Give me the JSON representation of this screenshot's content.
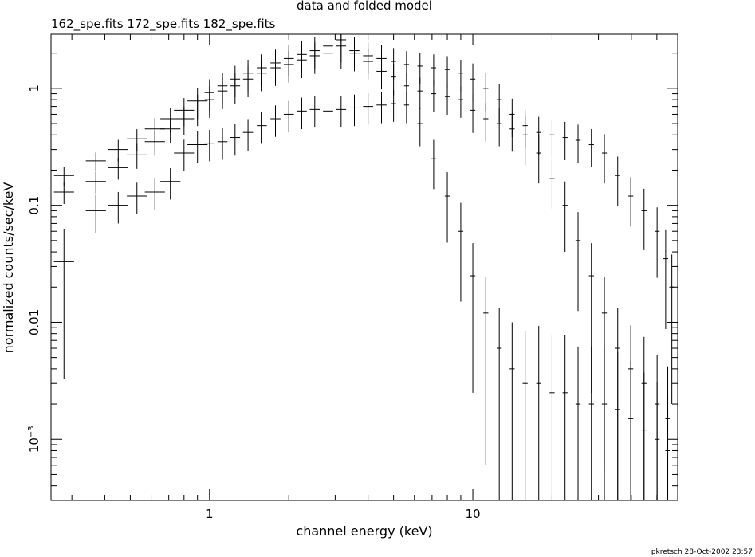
{
  "chart_data": {
    "type": "scatter",
    "title": "data and folded model",
    "subtitle": "162_spe.fits 172_spe.fits 182_spe.fits",
    "xlabel": "channel energy (keV)",
    "ylabel": "normalized counts/sec/keV",
    "xscale": "log",
    "yscale": "log",
    "xlim": [
      0.25,
      60
    ],
    "ylim": [
      0.0003,
      2.9
    ],
    "xticks": [
      {
        "value": 1,
        "label": "1"
      },
      {
        "value": 10,
        "label": "10"
      }
    ],
    "yticks": [
      {
        "value": 1,
        "label": "1"
      },
      {
        "value": 0.1,
        "label": "0.1"
      },
      {
        "value": 0.01,
        "label": "0.01"
      },
      {
        "value": 0.001,
        "label": "10",
        "exponent": "−3"
      }
    ],
    "grid": false,
    "legend": "none",
    "colors": {
      "marks": "#000000",
      "background": "#ffffff"
    },
    "footer": "pkretsch  28-Oct-2002 23:57",
    "series": [
      {
        "x": [
          0.28,
          0.37,
          0.45,
          0.53,
          0.62,
          0.71,
          0.8,
          0.9,
          1.0,
          1.12,
          1.25,
          1.4,
          1.58,
          1.78,
          2.0,
          2.24,
          2.51,
          2.82,
          3.16,
          3.55,
          4.0,
          4.5,
          5.0,
          5.6,
          6.3,
          7.1,
          8.0,
          9.0,
          10.0,
          11.2,
          12.6,
          14.1,
          15.8,
          17.8,
          20.0,
          22.4,
          25.1,
          28.2,
          31.6,
          35.5,
          39.8,
          44.7,
          50.1,
          54.0,
          57.0
        ],
        "y": [
          0.18,
          0.24,
          0.3,
          0.37,
          0.45,
          0.55,
          0.65,
          0.78,
          0.92,
          1.05,
          1.2,
          1.35,
          1.5,
          1.65,
          1.8,
          1.95,
          2.1,
          2.3,
          2.6,
          2.1,
          1.9,
          1.8,
          1.7,
          1.6,
          1.55,
          1.5,
          1.45,
          1.35,
          1.2,
          1.0,
          0.8,
          0.6,
          0.48,
          0.42,
          0.4,
          0.38,
          0.36,
          0.33,
          0.28,
          0.18,
          0.12,
          0.09,
          0.06,
          0.035,
          0.02
        ],
        "yerr": [
          0.06,
          0.06,
          0.07,
          0.07,
          0.08,
          0.08,
          0.09,
          0.1,
          0.1,
          0.1,
          0.1,
          0.1,
          0.1,
          0.1,
          0.1,
          0.1,
          0.1,
          0.1,
          0.12,
          0.1,
          0.1,
          0.1,
          0.1,
          0.1,
          0.1,
          0.1,
          0.1,
          0.1,
          0.12,
          0.12,
          0.12,
          0.12,
          0.12,
          0.12,
          0.12,
          0.12,
          0.12,
          0.12,
          0.15,
          0.15,
          0.15,
          0.18,
          0.2,
          0.25,
          0.3
        ]
      },
      {
        "x": [
          0.28,
          0.37,
          0.45,
          0.53,
          0.62,
          0.71,
          0.8,
          0.9,
          1.0,
          1.12,
          1.25,
          1.4,
          1.58,
          1.78,
          2.0,
          2.24,
          2.51,
          2.82,
          3.16,
          3.55,
          4.0,
          4.5,
          5.0,
          5.6,
          6.3,
          7.1,
          8.0,
          9.0,
          10.0,
          11.2,
          12.6,
          14.1,
          15.8,
          17.8,
          20.0,
          22.4,
          25.1,
          28.2,
          31.6,
          35.5,
          39.8,
          44.7,
          50.1,
          55.0
        ],
        "y": [
          0.13,
          0.16,
          0.21,
          0.27,
          0.35,
          0.45,
          0.55,
          0.68,
          0.8,
          0.95,
          1.05,
          1.2,
          1.35,
          1.5,
          1.6,
          1.75,
          1.9,
          2.0,
          2.3,
          2.0,
          1.7,
          1.4,
          1.25,
          1.05,
          0.95,
          0.9,
          0.85,
          0.8,
          0.65,
          0.55,
          0.5,
          0.45,
          0.4,
          0.28,
          0.17,
          0.1,
          0.05,
          0.025,
          0.012,
          0.006,
          0.004,
          0.003,
          0.002,
          0.0015
        ],
        "yerr": [
          0.07,
          0.07,
          0.07,
          0.08,
          0.08,
          0.08,
          0.09,
          0.1,
          0.1,
          0.1,
          0.1,
          0.1,
          0.1,
          0.1,
          0.1,
          0.1,
          0.1,
          0.1,
          0.12,
          0.1,
          0.1,
          0.1,
          0.1,
          0.1,
          0.1,
          0.1,
          0.1,
          0.1,
          0.12,
          0.12,
          0.12,
          0.12,
          0.15,
          0.15,
          0.15,
          0.2,
          0.25,
          0.3,
          0.35,
          0.4,
          0.45,
          0.5,
          0.55,
          0.6
        ]
      },
      {
        "x": [
          0.28,
          0.37,
          0.45,
          0.53,
          0.62,
          0.71,
          0.8,
          0.9,
          1.0,
          1.12,
          1.25,
          1.4,
          1.58,
          1.78,
          2.0,
          2.24,
          2.51,
          2.82,
          3.16,
          3.55,
          4.0,
          4.5,
          5.0,
          5.6,
          6.3,
          7.1,
          8.0,
          9.0,
          10.0,
          11.2,
          12.6,
          14.1,
          15.8,
          17.8,
          20.0,
          22.4,
          25.1,
          28.2,
          31.6,
          35.5,
          39.8,
          44.7,
          50.1,
          55.0
        ],
        "y": [
          0.033,
          0.09,
          0.1,
          0.12,
          0.13,
          0.16,
          0.28,
          0.33,
          0.34,
          0.35,
          0.38,
          0.42,
          0.48,
          0.55,
          0.6,
          0.64,
          0.66,
          0.64,
          0.66,
          0.68,
          0.7,
          0.72,
          0.74,
          0.72,
          0.5,
          0.25,
          0.12,
          0.06,
          0.025,
          0.012,
          0.006,
          0.004,
          0.003,
          0.003,
          0.0025,
          0.0025,
          0.002,
          0.002,
          0.002,
          0.0018,
          0.0015,
          0.0012,
          0.001,
          0.0008
        ],
        "yerr": [
          0.3,
          0.12,
          0.1,
          0.1,
          0.1,
          0.1,
          0.1,
          0.1,
          0.1,
          0.1,
          0.1,
          0.1,
          0.1,
          0.1,
          0.1,
          0.1,
          0.1,
          0.1,
          0.1,
          0.1,
          0.1,
          0.1,
          0.1,
          0.1,
          0.12,
          0.15,
          0.2,
          0.25,
          0.3,
          0.35,
          0.4,
          0.5,
          0.6,
          0.7,
          0.7,
          0.7,
          0.7,
          0.7,
          0.7,
          0.7,
          0.7,
          0.7,
          0.7,
          0.7
        ]
      }
    ]
  }
}
